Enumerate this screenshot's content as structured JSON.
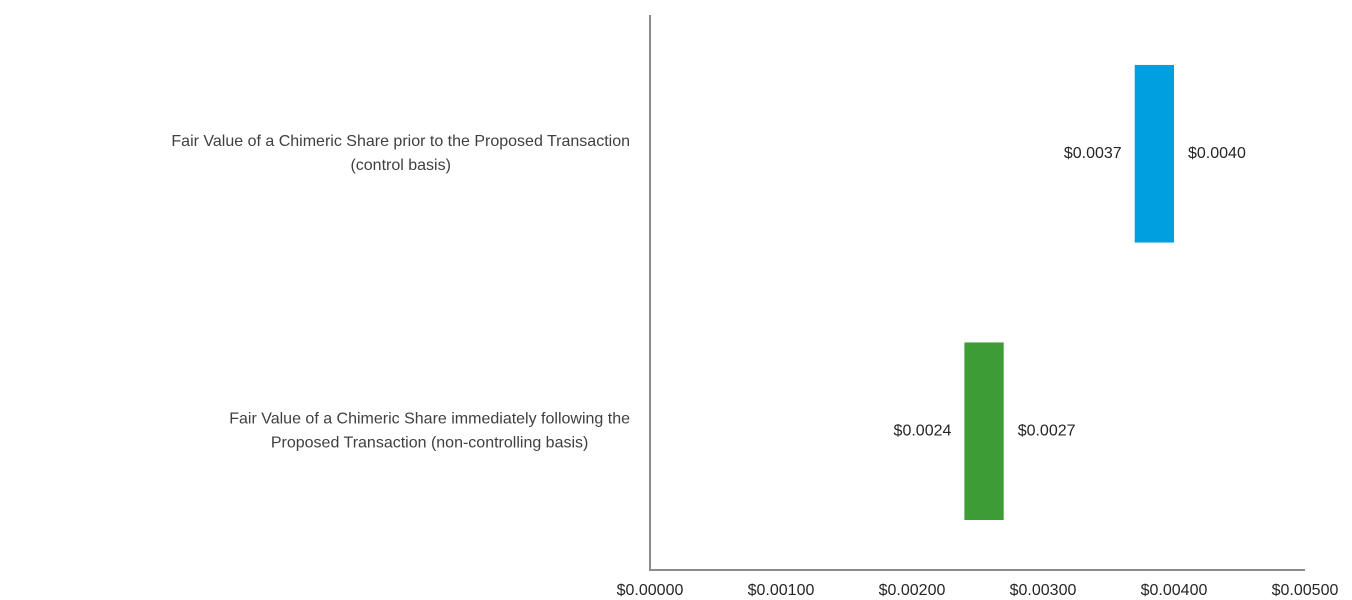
{
  "chart_data": {
    "type": "range-bar",
    "categories": [
      [
        "Fair Value of a Chimeric Share prior to the Proposed Transaction",
        "(control basis)"
      ],
      [
        "Fair Value of a Chimeric Share immediately following the",
        "Proposed Transaction (non-controlling basis)"
      ]
    ],
    "low": {
      "values": [
        0.0037,
        0.0024
      ],
      "value_labels": [
        "$0.0037",
        "$0.0024"
      ]
    },
    "high": {
      "values": [
        0.004,
        0.0027
      ],
      "value_labels": [
        "$0.0040",
        "$0.0027"
      ]
    },
    "colors": [
      "#009fdf",
      "#3d9c35"
    ],
    "xlim": [
      0,
      0.005
    ],
    "xticks": [
      {
        "value": 0,
        "label": "$0.00000"
      },
      {
        "value": 0.001,
        "label": "$0.00100"
      },
      {
        "value": 0.002,
        "label": "$0.00200"
      },
      {
        "value": 0.003,
        "label": "$0.00300"
      },
      {
        "value": 0.004,
        "label": "$0.00400"
      },
      {
        "value": 0.005,
        "label": "$0.00500"
      }
    ],
    "grid": false
  }
}
